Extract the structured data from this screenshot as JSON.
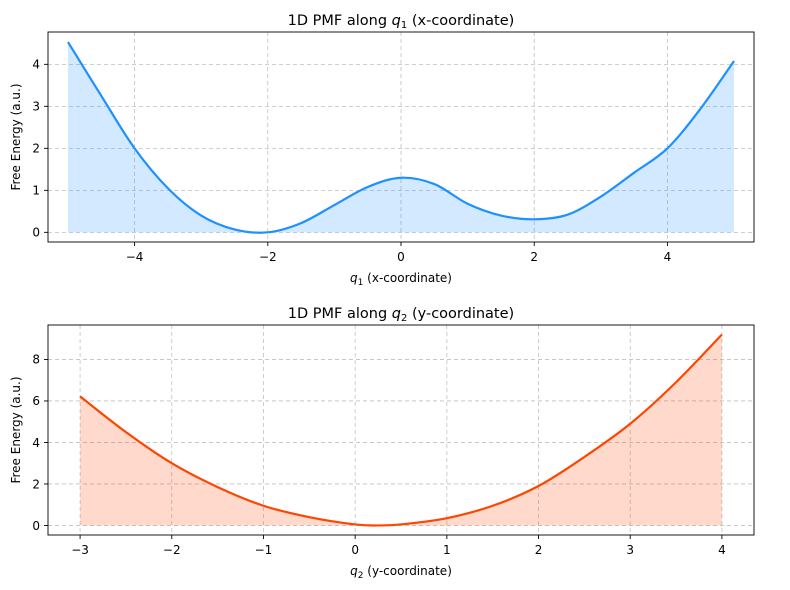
{
  "chart_data": [
    {
      "type": "area",
      "title_prefix": "1D PMF along ",
      "title_var": "q",
      "title_sub": "1",
      "title_suffix": " (x-coordinate)",
      "xlabel_var": "q",
      "xlabel_sub": "1",
      "xlabel_suffix": " (x-coordinate)",
      "ylabel": "Free Energy (a.u.)",
      "xlim": [
        -5.3,
        5.3
      ],
      "ylim": [
        -0.23,
        4.77
      ],
      "xticks": [
        -4,
        -2,
        0,
        2,
        4
      ],
      "xtick_labels": [
        "−4",
        "−2",
        "0",
        "2",
        "4"
      ],
      "yticks": [
        0,
        1,
        2,
        3,
        4
      ],
      "ytick_labels": [
        "0",
        "1",
        "2",
        "3",
        "4"
      ],
      "line_color": "#1e90ff",
      "fill_color": "#1e90ff",
      "grid": true,
      "x": [
        -5.0,
        -4.5,
        -4.0,
        -3.5,
        -3.0,
        -2.5,
        -2.0,
        -1.5,
        -1.0,
        -0.5,
        0.0,
        0.5,
        1.0,
        1.5,
        2.0,
        2.5,
        3.0,
        3.5,
        4.0,
        4.5,
        5.0
      ],
      "y": [
        4.53,
        3.25,
        2.0,
        1.05,
        0.4,
        0.07,
        0.0,
        0.22,
        0.65,
        1.08,
        1.3,
        1.15,
        0.68,
        0.4,
        0.31,
        0.42,
        0.85,
        1.42,
        2.0,
        2.95,
        4.08
      ]
    },
    {
      "type": "area",
      "title_prefix": "1D PMF along ",
      "title_var": "q",
      "title_sub": "2",
      "title_suffix": " (y-coordinate)",
      "xlabel_var": "q",
      "xlabel_sub": "2",
      "xlabel_suffix": " (y-coordinate)",
      "ylabel": "Free Energy (a.u.)",
      "xlim": [
        -3.35,
        4.35
      ],
      "ylim": [
        -0.46,
        9.66
      ],
      "xticks": [
        -3,
        -2,
        -1,
        0,
        1,
        2,
        3,
        4
      ],
      "xtick_labels": [
        "−3",
        "−2",
        "−1",
        "0",
        "1",
        "2",
        "3",
        "4"
      ],
      "yticks": [
        0,
        2,
        4,
        6,
        8
      ],
      "ytick_labels": [
        "0",
        "2",
        "4",
        "6",
        "8"
      ],
      "line_color": "#ff4500",
      "fill_color": "#ff4500",
      "grid": true,
      "x": [
        -3.0,
        -2.5,
        -2.0,
        -1.5,
        -1.0,
        -0.5,
        0.0,
        0.25,
        0.5,
        1.0,
        1.5,
        2.0,
        2.5,
        3.0,
        3.5,
        4.0
      ],
      "y": [
        6.22,
        4.5,
        3.0,
        1.85,
        0.95,
        0.4,
        0.05,
        0.0,
        0.05,
        0.35,
        0.95,
        1.9,
        3.3,
        4.9,
        6.9,
        9.2
      ]
    }
  ]
}
